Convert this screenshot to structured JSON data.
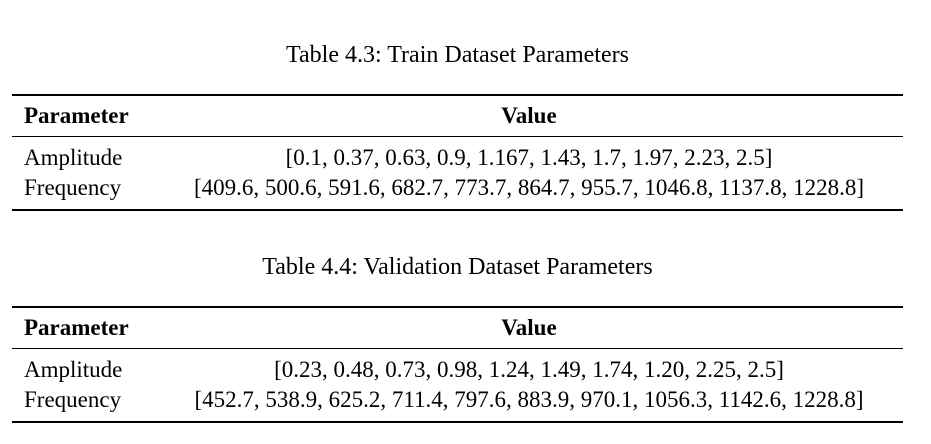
{
  "tables": [
    {
      "caption": "Table 4.3: Train Dataset Parameters",
      "headers": [
        "Parameter",
        "Value"
      ],
      "rows": [
        [
          "Amplitude",
          "[0.1, 0.37, 0.63, 0.9, 1.167, 1.43, 1.7, 1.97, 2.23, 2.5]"
        ],
        [
          "Frequency",
          "[409.6, 500.6, 591.6, 682.7, 773.7, 864.7, 955.7, 1046.8, 1137.8, 1228.8]"
        ]
      ]
    },
    {
      "caption": "Table 4.4: Validation Dataset Parameters",
      "headers": [
        "Parameter",
        "Value"
      ],
      "rows": [
        [
          "Amplitude",
          "[0.23, 0.48, 0.73, 0.98, 1.24, 1.49, 1.74, 1.20, 2.25, 2.5]"
        ],
        [
          "Frequency",
          "[452.7, 538.9, 625.2, 711.4, 797.6, 883.9, 970.1, 1056.3, 1142.6, 1228.8]"
        ]
      ]
    }
  ]
}
